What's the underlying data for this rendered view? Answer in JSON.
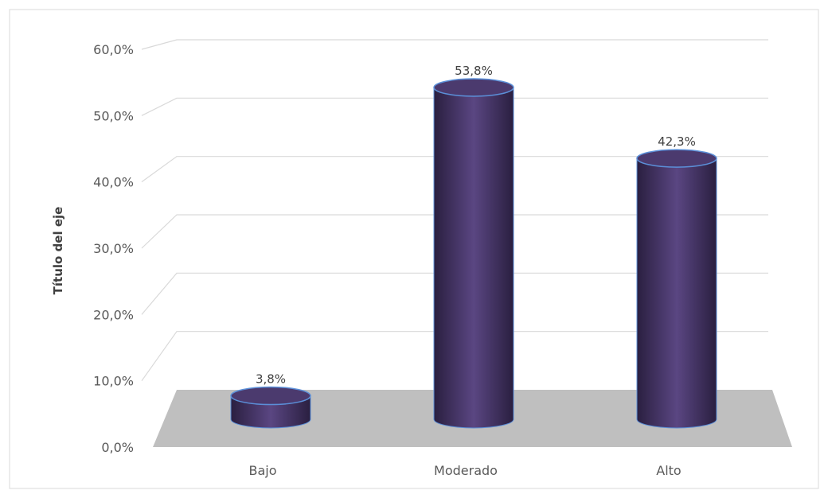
{
  "chart_data": {
    "type": "bar",
    "title": "",
    "xlabel": "",
    "ylabel": "Título del eje",
    "categories": [
      "Bajo",
      "Moderado",
      "Alto"
    ],
    "values": [
      3.8,
      53.8,
      42.3
    ],
    "data_labels": [
      "3,8%",
      "53,8%",
      "42,3%"
    ],
    "y_ticks": [
      "0,0%",
      "10,0%",
      "20,0%",
      "30,0%",
      "40,0%",
      "50,0%",
      "60,0%"
    ],
    "ylim": [
      0,
      60
    ],
    "grid": true,
    "legend": "none",
    "bar_shape": "cylinder",
    "bar_color": "#4b3a6e",
    "bar_edge_color": "#5b8fd8",
    "floor_color": "#bfbfbf"
  }
}
